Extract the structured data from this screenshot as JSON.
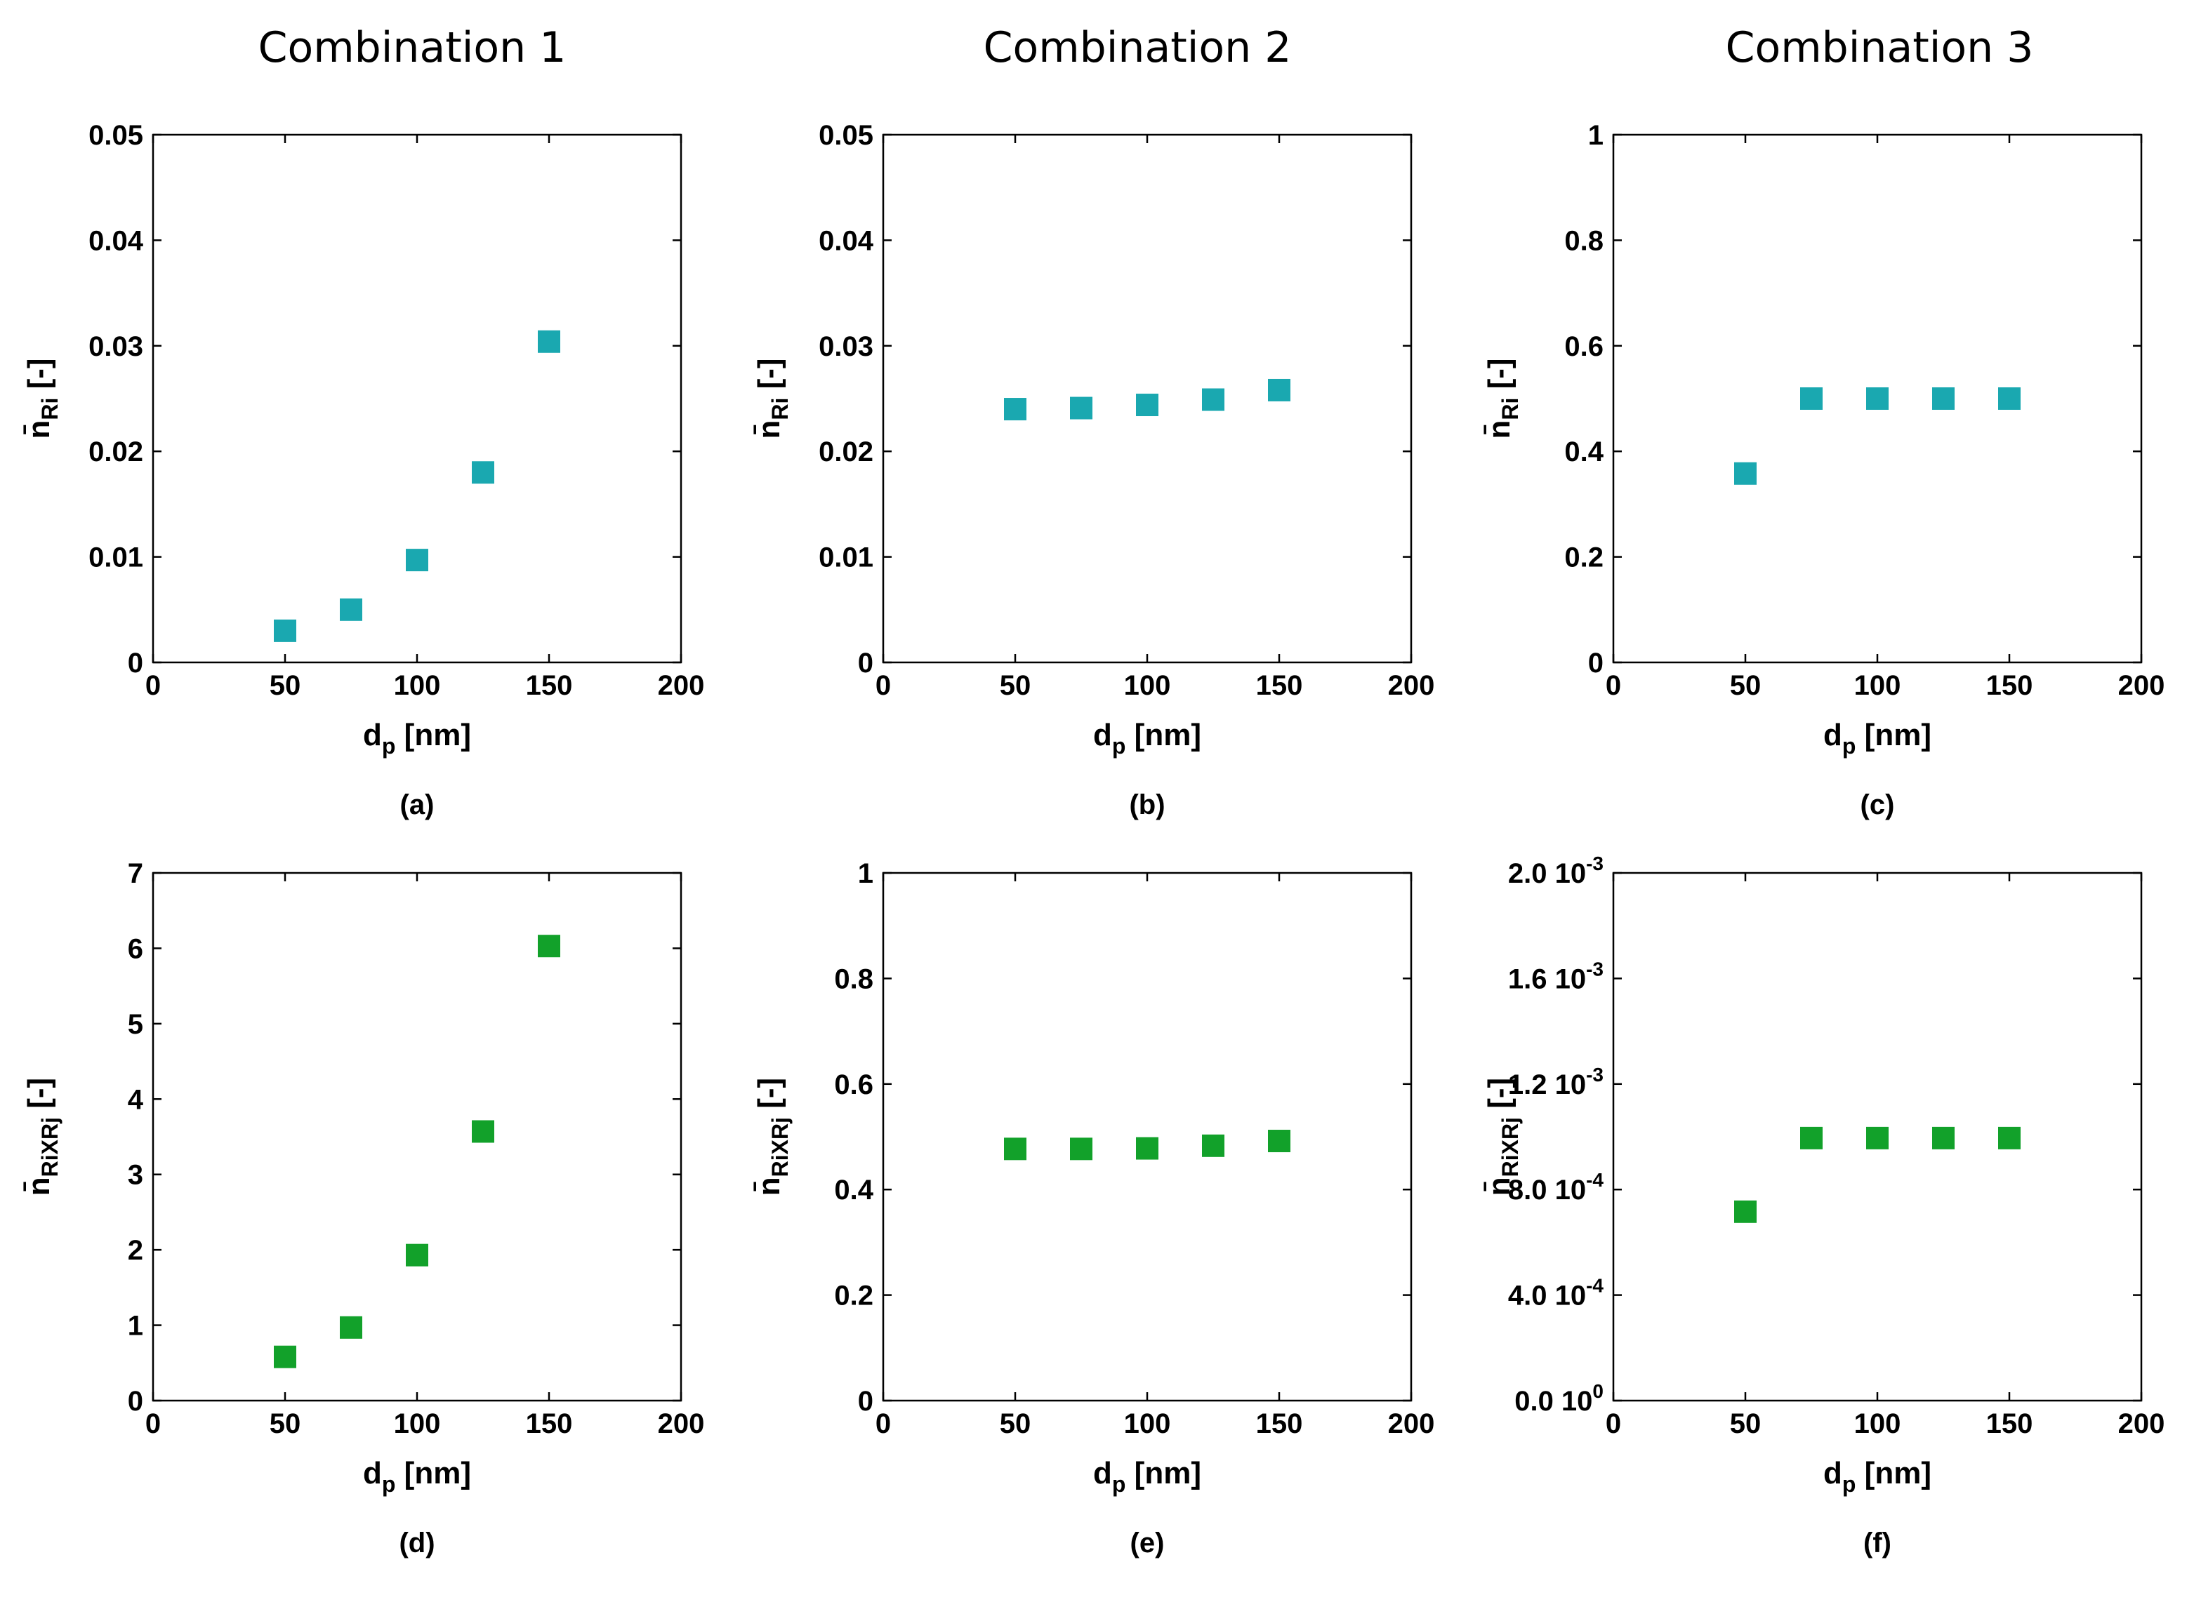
{
  "columns": [
    "Combination 1",
    "Combination 2",
    "Combination 3"
  ],
  "colors": {
    "top_marker": "#1aa8b0",
    "bottom_marker": "#12a12a"
  },
  "chart_data": [
    {
      "id": "a",
      "type": "scatter",
      "caption": "(a)",
      "xlabel": "d_p [nm]",
      "ylabel": "n̄_Ri [-]",
      "xlim": [
        0,
        200
      ],
      "ylim": [
        0,
        0.05
      ],
      "xticks": [
        0,
        50,
        100,
        150,
        200
      ],
      "xtick_labels": [
        "0",
        "50",
        "100",
        "150",
        "200"
      ],
      "yticks": [
        0,
        0.01,
        0.02,
        0.03,
        0.04,
        0.05
      ],
      "ytick_labels": [
        "0",
        "0.01",
        "0.02",
        "0.03",
        "0.04",
        "0.05"
      ],
      "x": [
        50,
        75,
        100,
        125,
        150
      ],
      "y": [
        0.003,
        0.005,
        0.0097,
        0.018,
        0.0304
      ],
      "marker": "square",
      "color": "#1aa8b0"
    },
    {
      "id": "b",
      "type": "scatter",
      "caption": "(b)",
      "xlabel": "d_p [nm]",
      "ylabel": "n̄_Ri [-]",
      "xlim": [
        0,
        200
      ],
      "ylim": [
        0,
        0.05
      ],
      "xticks": [
        0,
        50,
        100,
        150,
        200
      ],
      "xtick_labels": [
        "0",
        "50",
        "100",
        "150",
        "200"
      ],
      "yticks": [
        0,
        0.01,
        0.02,
        0.03,
        0.04,
        0.05
      ],
      "ytick_labels": [
        "0",
        "0.01",
        "0.02",
        "0.03",
        "0.04",
        "0.05"
      ],
      "x": [
        50,
        75,
        100,
        125,
        150
      ],
      "y": [
        0.024,
        0.0241,
        0.0244,
        0.0249,
        0.0258
      ],
      "marker": "square",
      "color": "#1aa8b0"
    },
    {
      "id": "c",
      "type": "scatter",
      "caption": "(c)",
      "xlabel": "d_p [nm]",
      "ylabel": "n̄_Ri [-]",
      "xlim": [
        0,
        200
      ],
      "ylim": [
        0,
        1
      ],
      "xticks": [
        0,
        50,
        100,
        150,
        200
      ],
      "xtick_labels": [
        "0",
        "50",
        "100",
        "150",
        "200"
      ],
      "yticks": [
        0,
        0.2,
        0.4,
        0.6,
        0.8,
        1
      ],
      "ytick_labels": [
        "0",
        "0.2",
        "0.4",
        "0.6",
        "0.8",
        "1"
      ],
      "x": [
        50,
        75,
        100,
        125,
        150
      ],
      "y": [
        0.358,
        0.5,
        0.5,
        0.5,
        0.5
      ],
      "marker": "square",
      "color": "#1aa8b0"
    },
    {
      "id": "d",
      "type": "scatter",
      "caption": "(d)",
      "xlabel": "d_p [nm]",
      "ylabel": "n̄_RiXRj [-]",
      "xlim": [
        0,
        200
      ],
      "ylim": [
        0,
        7
      ],
      "xticks": [
        0,
        50,
        100,
        150,
        200
      ],
      "xtick_labels": [
        "0",
        "50",
        "100",
        "150",
        "200"
      ],
      "yticks": [
        0,
        1,
        2,
        3,
        4,
        5,
        6,
        7
      ],
      "ytick_labels": [
        "0",
        "1",
        "2",
        "3",
        "4",
        "5",
        "6",
        "7"
      ],
      "x": [
        50,
        75,
        100,
        125,
        150
      ],
      "y": [
        0.58,
        0.97,
        1.93,
        3.57,
        6.03
      ],
      "marker": "square",
      "color": "#12a12a"
    },
    {
      "id": "e",
      "type": "scatter",
      "caption": "(e)",
      "xlabel": "d_p [nm]",
      "ylabel": "n̄_RiXRj [-]",
      "xlim": [
        0,
        200
      ],
      "ylim": [
        0,
        1
      ],
      "xticks": [
        0,
        50,
        100,
        150,
        200
      ],
      "xtick_labels": [
        "0",
        "50",
        "100",
        "150",
        "200"
      ],
      "yticks": [
        0,
        0.2,
        0.4,
        0.6,
        0.8,
        1
      ],
      "ytick_labels": [
        "0",
        "0.2",
        "0.4",
        "0.6",
        "0.8",
        "1"
      ],
      "x": [
        50,
        75,
        100,
        125,
        150
      ],
      "y": [
        0.477,
        0.477,
        0.478,
        0.483,
        0.492
      ],
      "marker": "square",
      "color": "#12a12a"
    },
    {
      "id": "f",
      "type": "scatter",
      "caption": "(f)",
      "xlabel": "d_p [nm]",
      "ylabel": "n̄_RiXRj [-]",
      "xlim": [
        0,
        200
      ],
      "ylim": [
        0,
        0.002
      ],
      "xticks": [
        0,
        50,
        100,
        150,
        200
      ],
      "xtick_labels": [
        "0",
        "50",
        "100",
        "150",
        "200"
      ],
      "yticks": [
        0,
        0.0004,
        0.0008,
        0.0012,
        0.0016,
        0.002
      ],
      "ytick_labels": [
        {
          "mant": "0.0 10",
          "exp": "0"
        },
        {
          "mant": "4.0 10",
          "exp": "-4"
        },
        {
          "mant": "8.0 10",
          "exp": "-4"
        },
        {
          "mant": "1.2 10",
          "exp": "-3"
        },
        {
          "mant": "1.6 10",
          "exp": "-3"
        },
        {
          "mant": "2.0 10",
          "exp": "-3"
        }
      ],
      "x": [
        50,
        75,
        100,
        125,
        150
      ],
      "y": [
        0.000716,
        0.000995,
        0.000995,
        0.000995,
        0.000995
      ],
      "marker": "square",
      "color": "#12a12a"
    }
  ]
}
